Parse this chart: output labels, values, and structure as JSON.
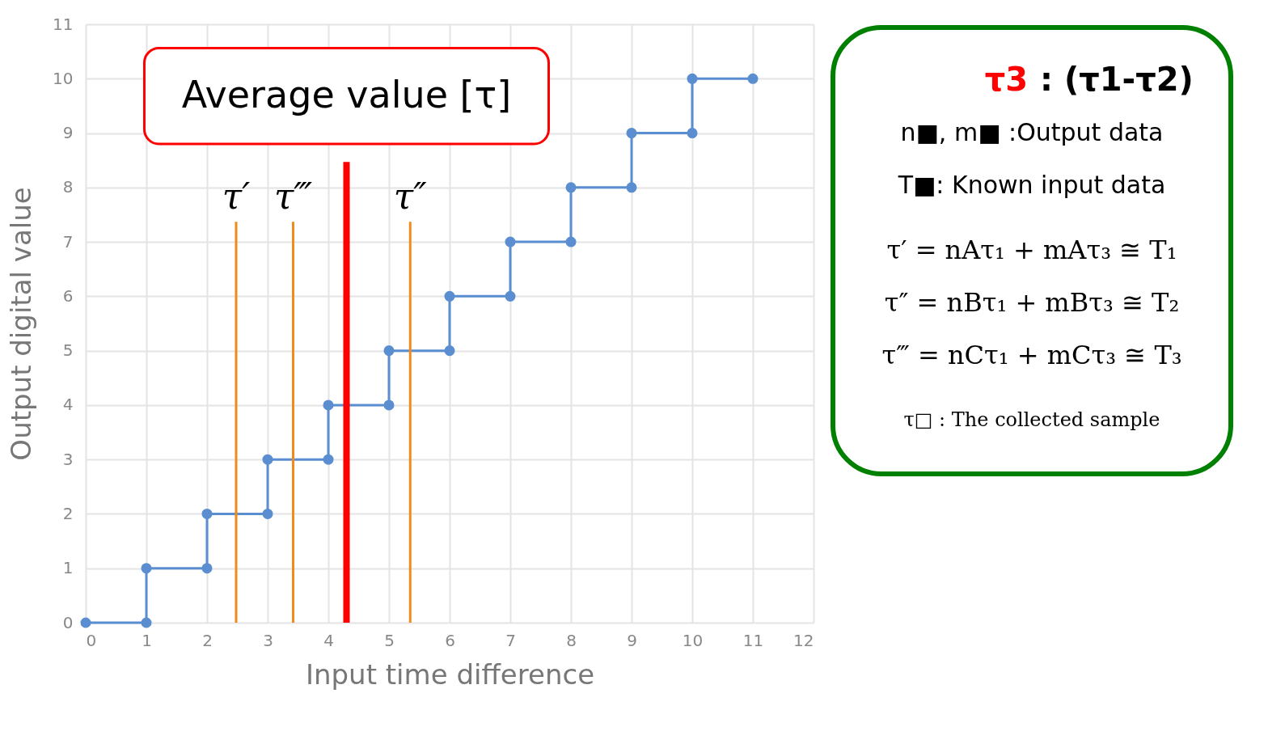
{
  "chart_data": {
    "type": "line",
    "xlabel": "Input time difference",
    "ylabel": "Output digital value",
    "x": [
      0,
      1,
      1,
      2,
      2,
      3,
      3,
      4,
      4,
      5,
      5,
      6,
      6,
      7,
      7,
      8,
      8,
      9,
      9,
      10,
      10,
      11
    ],
    "series": [
      {
        "color": "#5a8ed1",
        "values": [
          0,
          0,
          1,
          1,
          2,
          2,
          3,
          3,
          4,
          4,
          5,
          5,
          6,
          6,
          7,
          7,
          8,
          8,
          9,
          9,
          10,
          10
        ]
      }
    ],
    "marker": "circle",
    "xlim": [
      0,
      12
    ],
    "xticks": [
      0,
      1,
      2,
      3,
      4,
      5,
      6,
      7,
      8,
      9,
      10,
      11,
      12
    ],
    "ylim": [
      0,
      11
    ],
    "yticks": [
      0,
      1,
      2,
      3,
      4,
      5,
      6,
      7,
      8,
      9,
      10,
      11
    ],
    "grid": true,
    "ref_lines": [
      {
        "axis": "x",
        "value": 2.48,
        "label": "τ′",
        "color": "#f08a1c"
      },
      {
        "axis": "x",
        "value": 3.42,
        "label": "τ‴",
        "color": "#f08a1c"
      },
      {
        "axis": "x",
        "value": 4.3,
        "label": "Average value [τ]",
        "color": "#ff0000"
      },
      {
        "axis": "x",
        "value": 5.35,
        "label": "τ″",
        "color": "#f08a1c"
      }
    ],
    "annotations": [
      "τ3",
      ": (τ1-τ2)",
      "n■, m■ :Output data",
      "T■: Known input data",
      "τ′ = nAτ₁ + mAτ₃ ≅ T₁",
      "τ″ = nBτ₁ + mBτ₃ ≅ T₂",
      "τ‴ = nCτ₁ + mCτ₃ ≅ T₃",
      "τ□ : The collected sample"
    ]
  }
}
